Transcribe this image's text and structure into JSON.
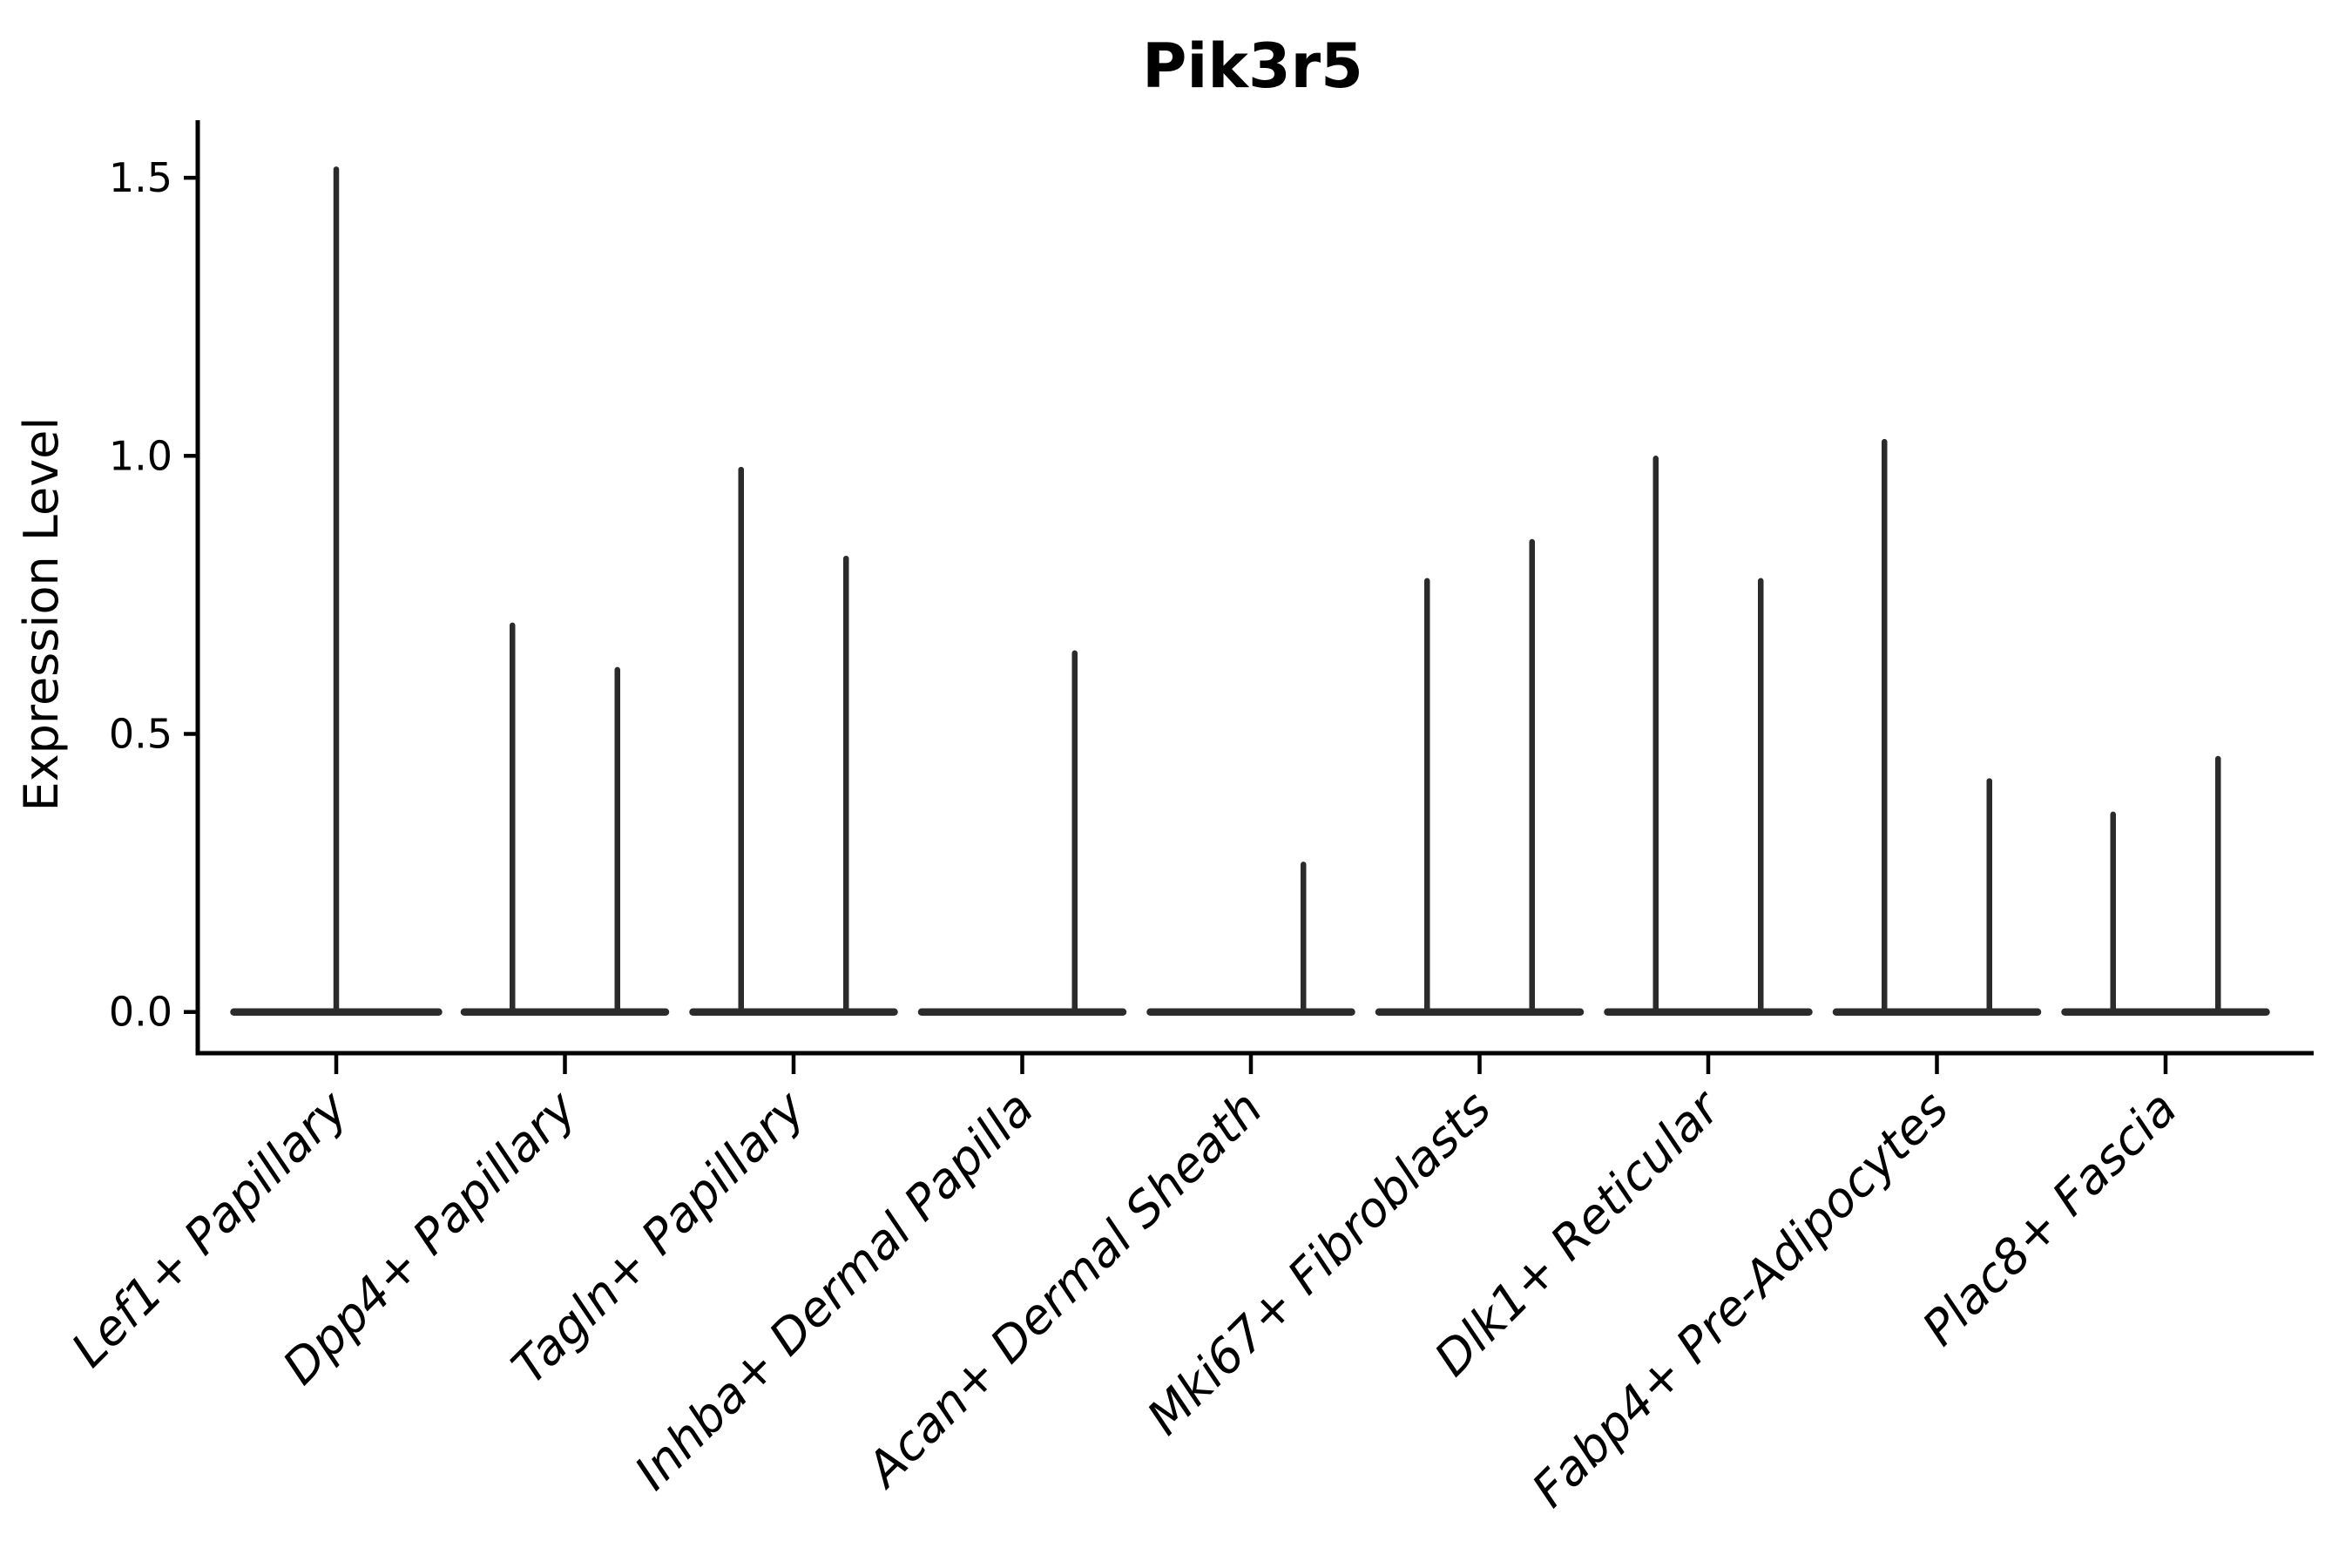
{
  "chart_data": {
    "type": "violin",
    "title": "Pik3r5",
    "ylabel": "Expression Level",
    "xlabel": "",
    "yticks": [
      "0.0",
      "0.5",
      "1.0",
      "1.5"
    ],
    "ytick_values": [
      0.0,
      0.5,
      1.0,
      1.5
    ],
    "ylim": [
      -0.07,
      1.6
    ],
    "grid": false,
    "legend": "none",
    "violin_color": "#2b2b2b",
    "axis_color": "#000000",
    "categories": [
      "Lef1+ Papillary",
      "Dpp4+ Papillary",
      "Tagln+ Papillary",
      "Inhba+ Dermal Papilla",
      "Acan+ Dermal Sheath",
      "Mki67+ Fibroblasts",
      "Dlk1+ Reticular",
      "Fabp4+ Pre-Adipocytes",
      "Plac8+ Fascia"
    ],
    "violins": [
      {
        "category": "Lef1+ Papillary",
        "layout": "single",
        "max_values": [
          1.52
        ]
      },
      {
        "category": "Dpp4+ Papillary",
        "layout": "split",
        "max_values": [
          0.7,
          0.62
        ]
      },
      {
        "category": "Tagln+ Papillary",
        "layout": "split",
        "max_values": [
          0.98,
          0.82
        ]
      },
      {
        "category": "Inhba+ Dermal Papilla",
        "layout": "split",
        "max_values": [
          0.0,
          0.65
        ]
      },
      {
        "category": "Acan+ Dermal Sheath",
        "layout": "split",
        "max_values": [
          0.0,
          0.27
        ]
      },
      {
        "category": "Mki67+ Fibroblasts",
        "layout": "split",
        "max_values": [
          0.78,
          0.85
        ]
      },
      {
        "category": "Dlk1+ Reticular",
        "layout": "split",
        "max_values": [
          1.0,
          0.78
        ]
      },
      {
        "category": "Fabp4+ Pre-Adipocytes",
        "layout": "split",
        "max_values": [
          1.03,
          0.42
        ]
      },
      {
        "category": "Plac8+ Fascia",
        "layout": "split",
        "max_values": [
          0.36,
          0.46
        ]
      }
    ],
    "description": "Violin plot of Pik3r5 expression per fibroblast subtype; most cells at 0 giving flat bases with thin spikes up to the max expressing cell."
  }
}
